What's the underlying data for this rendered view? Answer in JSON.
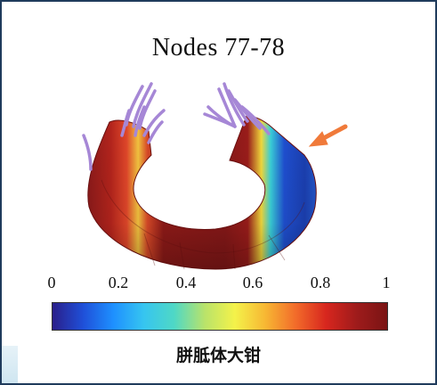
{
  "figure": {
    "title": "Nodes 77-78"
  },
  "colorbar": {
    "ticks": [
      "0",
      "0.2",
      "0.4",
      "0.6",
      "0.8",
      "1"
    ],
    "label": "胼胝体大钳",
    "colormap": [
      "#2a1f8a",
      "#1f4fd8",
      "#1e90ff",
      "#36c5f0",
      "#4fd8c5",
      "#b9e36a",
      "#f4f24a",
      "#f7b733",
      "#f26b2a",
      "#d7261e",
      "#9e1b1b",
      "#7a1414"
    ]
  },
  "annotation": {
    "arrow_color": "#f07a3a"
  },
  "colors": {
    "tract_base": "#8b1a1a",
    "fibers": "#a687d6"
  }
}
